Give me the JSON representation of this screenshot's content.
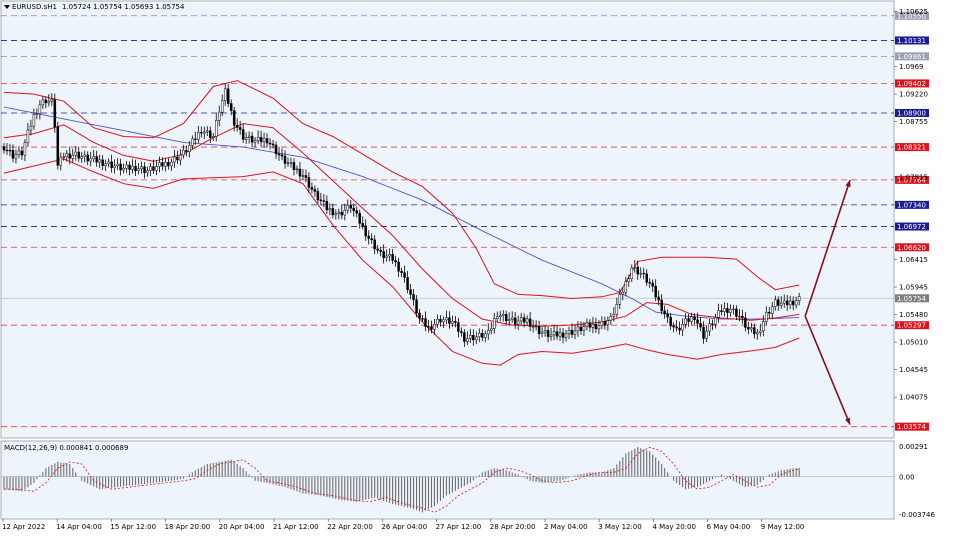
{
  "header": {
    "symbol": "EURUSD.sH1",
    "ohlc": "1.05724 1.05754 1.05693 1.05754"
  },
  "indicator": {
    "label": "MACD(12,26,9) 0.000841 0.000689",
    "scale": [
      "0.00291",
      "0.00",
      "-0.003746"
    ]
  },
  "colors": {
    "background": "#eef4fc",
    "bollinger": "#e0111b",
    "moving_average": "#4d58c9",
    "candles": "#000000",
    "arrow": "#8b0d19",
    "blue_level": "#1b1b92",
    "red_level": "#e03c3c",
    "price_tag": "#7f7f7f"
  },
  "chart_data": {
    "type": "candlestick",
    "symbol": "EURUSD.sH1",
    "timeframe": "H1",
    "x_labels": [
      "12 Apr 2022",
      "14 Apr 04:00",
      "15 Apr 12:00",
      "18 Apr 20:00",
      "20 Apr 04:00",
      "21 Apr 12:00",
      "22 Apr 20:00",
      "26 Apr 04:00",
      "27 Apr 12:00",
      "28 Apr 20:00",
      "2 May 04:00",
      "3 May 12:00",
      "4 May 20:00",
      "6 May 04:00",
      "9 May 12:00"
    ],
    "y_ticks": [
      1.10625,
      1.0969,
      1.0922,
      1.08755,
      1.07815,
      1.06415,
      1.05945,
      1.0548,
      1.0501,
      1.04545,
      1.04075
    ],
    "ylim": [
      1.0345,
      1.1075
    ],
    "price_levels": [
      {
        "label": "1.10550",
        "value": 1.1055,
        "kind": "blue",
        "tag_color": "#9aa0b0"
      },
      {
        "label": "1.10131",
        "value": 1.10131,
        "kind": "blue",
        "tag_color": "#1b1b92"
      },
      {
        "label": "1.09861",
        "value": 1.09861,
        "kind": "blue",
        "tag_color": "#9aa0b0"
      },
      {
        "label": "1.09402",
        "value": 1.09402,
        "kind": "red",
        "tag_color": "#e0111b"
      },
      {
        "label": "1.08900",
        "value": 1.089,
        "kind": "blue",
        "tag_color": "#1b1b92"
      },
      {
        "label": "1.08321",
        "value": 1.08321,
        "kind": "red",
        "tag_color": "#e0111b"
      },
      {
        "label": "1.07764",
        "value": 1.07764,
        "kind": "red",
        "tag_color": "#e0111b"
      },
      {
        "label": "1.07340",
        "value": 1.0734,
        "kind": "blue",
        "tag_color": "#1b1b92"
      },
      {
        "label": "1.06972",
        "value": 1.06972,
        "kind": "blue",
        "tag_color": "#1b1b92"
      },
      {
        "label": "1.06620",
        "value": 1.0662,
        "kind": "red",
        "tag_color": "#e0111b"
      },
      {
        "label": "1.05297",
        "value": 1.05297,
        "kind": "red",
        "tag_color": "#e0111b"
      },
      {
        "label": "1.03574",
        "value": 1.03574,
        "kind": "red",
        "tag_color": "#e0111b"
      }
    ],
    "current_price": {
      "label": "1.05754",
      "value": 1.05754
    },
    "close_path": [
      [
        0,
        1.0833
      ],
      [
        3,
        1.0818
      ],
      [
        6,
        1.0822
      ],
      [
        8,
        1.0855
      ],
      [
        10,
        1.0885
      ],
      [
        12,
        1.0905
      ],
      [
        14,
        1.0912
      ],
      [
        16,
        1.0908
      ],
      [
        17,
        1.087
      ],
      [
        18,
        1.08
      ],
      [
        20,
        1.0818
      ],
      [
        24,
        1.082
      ],
      [
        28,
        1.0812
      ],
      [
        32,
        1.0808
      ],
      [
        36,
        1.0802
      ],
      [
        40,
        1.0795
      ],
      [
        44,
        1.0798
      ],
      [
        48,
        1.0792
      ],
      [
        52,
        1.08
      ],
      [
        56,
        1.0808
      ],
      [
        60,
        1.0822
      ],
      [
        63,
        1.084
      ],
      [
        66,
        1.0862
      ],
      [
        70,
        1.085
      ],
      [
        72,
        1.0895
      ],
      [
        74,
        1.0925
      ],
      [
        77,
        1.0875
      ],
      [
        80,
        1.085
      ],
      [
        84,
        1.0842
      ],
      [
        88,
        1.0845
      ],
      [
        90,
        1.0832
      ],
      [
        93,
        1.0812
      ],
      [
        96,
        1.08
      ],
      [
        100,
        1.0785
      ],
      [
        104,
        1.0752
      ],
      [
        108,
        1.0728
      ],
      [
        112,
        1.0718
      ],
      [
        116,
        1.0732
      ],
      [
        119,
        1.0705
      ],
      [
        122,
        1.0678
      ],
      [
        126,
        1.065
      ],
      [
        130,
        1.0642
      ],
      [
        133,
        1.062
      ],
      [
        136,
        1.0582
      ],
      [
        139,
        1.054
      ],
      [
        142,
        1.0525
      ],
      [
        146,
        1.054
      ],
      [
        150,
        1.0535
      ],
      [
        154,
        1.0508
      ],
      [
        158,
        1.051
      ],
      [
        162,
        1.0515
      ],
      [
        165,
        1.055
      ],
      [
        168,
        1.0542
      ],
      [
        171,
        1.0535
      ],
      [
        175,
        1.0538
      ],
      [
        179,
        1.052
      ],
      [
        183,
        1.0512
      ],
      [
        187,
        1.0515
      ],
      [
        191,
        1.052
      ],
      [
        195,
        1.0528
      ],
      [
        199,
        1.053
      ],
      [
        203,
        1.054
      ],
      [
        207,
        1.0588
      ],
      [
        210,
        1.0628
      ],
      [
        213,
        1.0618
      ],
      [
        216,
        1.06
      ],
      [
        219,
        1.057
      ],
      [
        222,
        1.054
      ],
      [
        225,
        1.052
      ],
      [
        228,
        1.0535
      ],
      [
        231,
        1.0545
      ],
      [
        234,
        1.0512
      ],
      [
        237,
        1.0535
      ],
      [
        240,
        1.0555
      ],
      [
        243,
        1.0558
      ],
      [
        246,
        1.0545
      ],
      [
        249,
        1.0522
      ],
      [
        252,
        1.0515
      ],
      [
        255,
        1.0548
      ],
      [
        258,
        1.0568
      ],
      [
        261,
        1.0565
      ],
      [
        264,
        1.057
      ],
      [
        266,
        1.0575
      ]
    ],
    "bollinger_upper": [
      [
        0,
        1.0925
      ],
      [
        10,
        1.0922
      ],
      [
        20,
        1.091
      ],
      [
        30,
        1.0865
      ],
      [
        40,
        1.085
      ],
      [
        50,
        1.0848
      ],
      [
        60,
        1.0872
      ],
      [
        70,
        1.0935
      ],
      [
        78,
        1.0945
      ],
      [
        90,
        1.0915
      ],
      [
        100,
        1.0872
      ],
      [
        110,
        1.085
      ],
      [
        120,
        1.082
      ],
      [
        130,
        1.079
      ],
      [
        140,
        1.0765
      ],
      [
        150,
        1.072
      ],
      [
        158,
        1.066
      ],
      [
        164,
        1.06
      ],
      [
        172,
        1.0582
      ],
      [
        180,
        1.058
      ],
      [
        190,
        1.0575
      ],
      [
        200,
        1.0578
      ],
      [
        206,
        1.0585
      ],
      [
        212,
        1.0638
      ],
      [
        220,
        1.0645
      ],
      [
        235,
        1.0645
      ],
      [
        245,
        1.0642
      ],
      [
        252,
        1.0612
      ],
      [
        258,
        1.059
      ],
      [
        266,
        1.0598
      ]
    ],
    "bollinger_middle": [
      [
        0,
        1.0848
      ],
      [
        10,
        1.0855
      ],
      [
        20,
        1.087
      ],
      [
        30,
        1.084
      ],
      [
        40,
        1.0818
      ],
      [
        50,
        1.0808
      ],
      [
        60,
        1.082
      ],
      [
        70,
        1.0848
      ],
      [
        80,
        1.0872
      ],
      [
        90,
        1.0865
      ],
      [
        100,
        1.0822
      ],
      [
        110,
        1.0775
      ],
      [
        120,
        1.0728
      ],
      [
        130,
        1.0682
      ],
      [
        140,
        1.0625
      ],
      [
        150,
        1.0575
      ],
      [
        160,
        1.054
      ],
      [
        170,
        1.053
      ],
      [
        180,
        1.0528
      ],
      [
        190,
        1.053
      ],
      [
        200,
        1.0535
      ],
      [
        208,
        1.0545
      ],
      [
        215,
        1.0568
      ],
      [
        222,
        1.0565
      ],
      [
        230,
        1.0548
      ],
      [
        240,
        1.0542
      ],
      [
        250,
        1.0538
      ],
      [
        258,
        1.0542
      ],
      [
        266,
        1.0548
      ]
    ],
    "bollinger_lower": [
      [
        0,
        1.0788
      ],
      [
        10,
        1.08
      ],
      [
        20,
        1.0812
      ],
      [
        30,
        1.079
      ],
      [
        40,
        1.077
      ],
      [
        50,
        1.0762
      ],
      [
        60,
        1.0778
      ],
      [
        70,
        1.078
      ],
      [
        80,
        1.0782
      ],
      [
        90,
        1.079
      ],
      [
        100,
        1.077
      ],
      [
        110,
        1.07
      ],
      [
        120,
        1.064
      ],
      [
        130,
        1.0595
      ],
      [
        140,
        1.0535
      ],
      [
        150,
        1.0485
      ],
      [
        160,
        1.0465
      ],
      [
        166,
        1.0462
      ],
      [
        172,
        1.048
      ],
      [
        180,
        1.0485
      ],
      [
        190,
        1.0482
      ],
      [
        200,
        1.049
      ],
      [
        208,
        1.0498
      ],
      [
        215,
        1.0488
      ],
      [
        222,
        1.048
      ],
      [
        232,
        1.0472
      ],
      [
        240,
        1.048
      ],
      [
        250,
        1.0486
      ],
      [
        258,
        1.0492
      ],
      [
        266,
        1.0508
      ]
    ],
    "moving_average": [
      [
        0,
        1.09
      ],
      [
        20,
        1.088
      ],
      [
        40,
        1.086
      ],
      [
        60,
        1.084
      ],
      [
        80,
        1.0832
      ],
      [
        100,
        1.0815
      ],
      [
        120,
        1.0782
      ],
      [
        140,
        1.0742
      ],
      [
        160,
        1.069
      ],
      [
        180,
        1.064
      ],
      [
        200,
        1.06
      ],
      [
        210,
        1.0575
      ],
      [
        218,
        1.0552
      ],
      [
        228,
        1.0545
      ],
      [
        240,
        1.054
      ],
      [
        250,
        1.054
      ],
      [
        258,
        1.0541
      ],
      [
        266,
        1.0543
      ]
    ],
    "macd_scale": {
      "top": 0.00291,
      "zero": 0.0,
      "bottom": -0.003746
    },
    "macd_histogram": [
      [
        0,
        -0.0012
      ],
      [
        6,
        -0.0014
      ],
      [
        10,
        -0.0006
      ],
      [
        14,
        0.0008
      ],
      [
        18,
        0.0014
      ],
      [
        22,
        0.0012
      ],
      [
        26,
        -0.0004
      ],
      [
        32,
        -0.0012
      ],
      [
        38,
        -0.001
      ],
      [
        44,
        -0.0008
      ],
      [
        50,
        -0.0006
      ],
      [
        56,
        -0.0004
      ],
      [
        60,
        -0.0002
      ],
      [
        64,
        0.0006
      ],
      [
        68,
        0.0012
      ],
      [
        72,
        0.0014
      ],
      [
        76,
        0.0016
      ],
      [
        80,
        0.0008
      ],
      [
        84,
        -0.0004
      ],
      [
        88,
        -0.0006
      ],
      [
        94,
        -0.001
      ],
      [
        100,
        -0.0016
      ],
      [
        106,
        -0.0018
      ],
      [
        112,
        -0.0022
      ],
      [
        118,
        -0.0024
      ],
      [
        124,
        -0.002
      ],
      [
        130,
        -0.0026
      ],
      [
        136,
        -0.003
      ],
      [
        140,
        -0.0034
      ],
      [
        144,
        -0.0028
      ],
      [
        148,
        -0.0018
      ],
      [
        152,
        -0.0012
      ],
      [
        156,
        -0.0006
      ],
      [
        160,
        0.0004
      ],
      [
        164,
        0.0008
      ],
      [
        168,
        0.0006
      ],
      [
        172,
        0.0002
      ],
      [
        176,
        -0.0004
      ],
      [
        180,
        -0.0006
      ],
      [
        186,
        -0.0004
      ],
      [
        192,
        0.0002
      ],
      [
        196,
        0.0004
      ],
      [
        200,
        0.0004
      ],
      [
        204,
        0.0008
      ],
      [
        208,
        0.0022
      ],
      [
        212,
        0.0028
      ],
      [
        216,
        0.0024
      ],
      [
        220,
        0.0012
      ],
      [
        224,
        -0.0004
      ],
      [
        228,
        -0.0012
      ],
      [
        232,
        -0.001
      ],
      [
        236,
        -0.0004
      ],
      [
        240,
        0.0002
      ],
      [
        244,
        -0.0004
      ],
      [
        248,
        -0.001
      ],
      [
        252,
        -0.0008
      ],
      [
        256,
        0.0002
      ],
      [
        260,
        0.0006
      ],
      [
        264,
        0.0008
      ],
      [
        266,
        0.00084
      ]
    ],
    "annotations": [
      {
        "type": "arrow",
        "direction": "up",
        "from": [
          268,
          1.0545
        ],
        "to": [
          283,
          1.0776
        ]
      },
      {
        "type": "arrow",
        "direction": "down",
        "from": [
          268,
          1.0545
        ],
        "to": [
          283,
          1.0361
        ]
      }
    ]
  }
}
